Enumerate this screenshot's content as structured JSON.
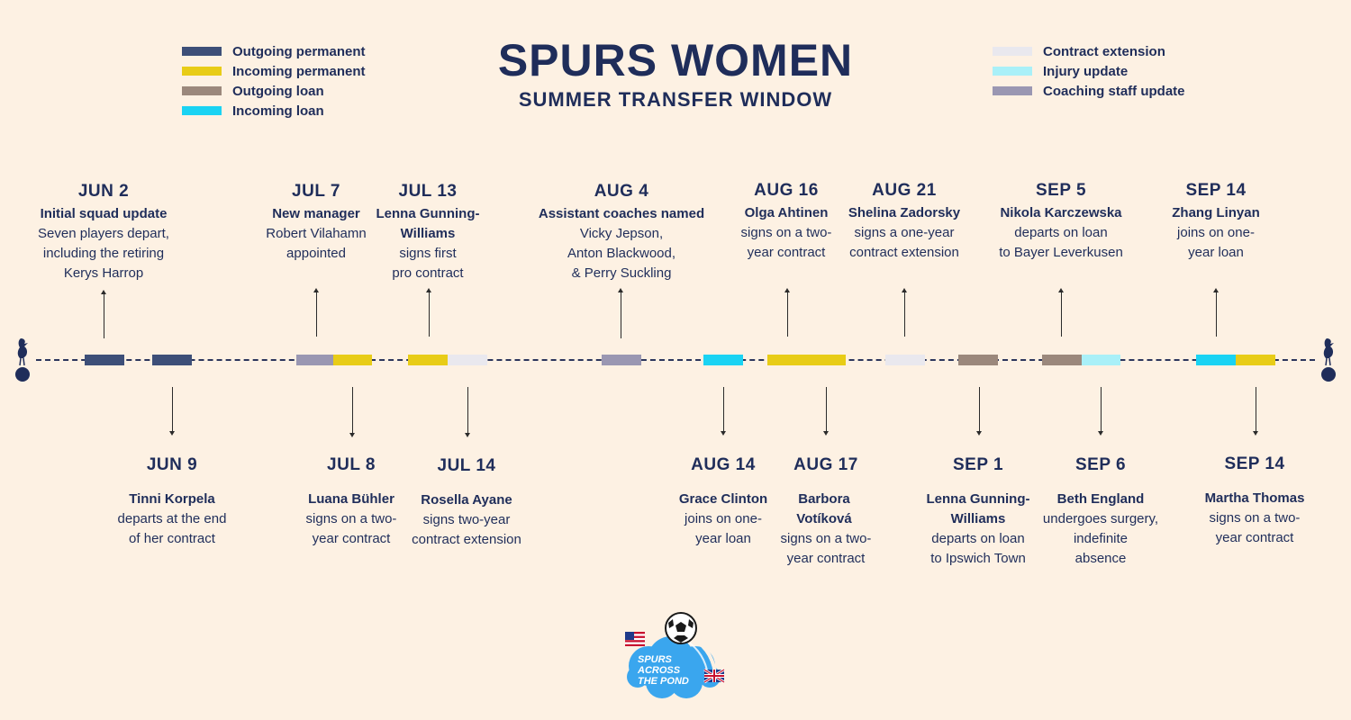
{
  "header": {
    "title": "SPURS WOMEN",
    "subtitle": "SUMMER TRANSFER WINDOW"
  },
  "colors": {
    "outgoing_permanent": "#3d4f78",
    "incoming_permanent": "#e8cc17",
    "outgoing_loan": "#9b887c",
    "incoming_loan": "#1ad3f3",
    "contract_extension": "#e9e8ee",
    "injury_update": "#a9f0f8",
    "coaching_staff_update": "#9a97b2",
    "navy": "#1f2d5a"
  },
  "legend_left": [
    {
      "label": "Outgoing permanent",
      "color": "#3d4f78"
    },
    {
      "label": "Incoming permanent",
      "color": "#e8cc17"
    },
    {
      "label": "Outgoing loan",
      "color": "#9b887c"
    },
    {
      "label": "Incoming loan",
      "color": "#1ad3f3"
    }
  ],
  "legend_right": [
    {
      "label": "Contract extension",
      "color": "#e9e8ee"
    },
    {
      "label": "Injury update",
      "color": "#a9f0f8"
    },
    {
      "label": "Coaching staff update",
      "color": "#9a97b2"
    }
  ],
  "events_top": [
    {
      "date": "JUN 2",
      "headline": "Initial squad update",
      "body": "Seven players depart,\nincluding the retiring\nKerys Harrop"
    },
    {
      "date": "JUL 7",
      "headline": "New manager",
      "body": "Robert Vilahamn\nappointed"
    },
    {
      "date": "JUL 13",
      "headline": "Lenna Gunning-\nWilliams",
      "body": "signs first\npro contract"
    },
    {
      "date": "AUG 4",
      "headline": "Assistant coaches named",
      "body": "Vicky Jepson,\nAnton Blackwood,\n& Perry Suckling"
    },
    {
      "date": "AUG 16",
      "headline": "Olga Ahtinen",
      "body": "signs on a two-\nyear contract"
    },
    {
      "date": "AUG 21",
      "headline": "Shelina Zadorsky",
      "body": "signs a one-year\ncontract extension"
    },
    {
      "date": "SEP 5",
      "headline": "Nikola Karczewska",
      "body": "departs on loan\nto Bayer Leverkusen"
    },
    {
      "date": "SEP 14",
      "headline": "Zhang Linyan",
      "body": "joins on one-\nyear loan"
    }
  ],
  "events_bottom": [
    {
      "date": "JUN 9",
      "headline": "Tinni Korpela",
      "body": "departs at the end\nof her contract"
    },
    {
      "date": "JUL 8",
      "headline": "Luana Bühler",
      "body": "signs on a two-\nyear contract"
    },
    {
      "date": "JUL 14",
      "headline": "Rosella Ayane",
      "body": "signs two-year\ncontract extension"
    },
    {
      "date": "AUG 14",
      "headline": "Grace Clinton",
      "body": "joins on one-\nyear loan"
    },
    {
      "date": "AUG 17",
      "headline": "Barbora\nVotíková",
      "body": "signs on a two-\nyear contract"
    },
    {
      "date": "SEP 1",
      "headline": "Lenna Gunning-\nWilliams",
      "body": "departs on loan\nto Ipswich Town"
    },
    {
      "date": "SEP 6",
      "headline": "Beth England",
      "body": "undergoes surgery,\nindefinite\nabsence"
    },
    {
      "date": "SEP 14",
      "headline": "Martha Thomas",
      "body": "signs on a two-\nyear contract"
    }
  ],
  "logo": {
    "text_line1": "SPURS",
    "text_line2": "ACROSS",
    "text_line3": "THE POND",
    "cloud_color": "#3aa6ee"
  }
}
